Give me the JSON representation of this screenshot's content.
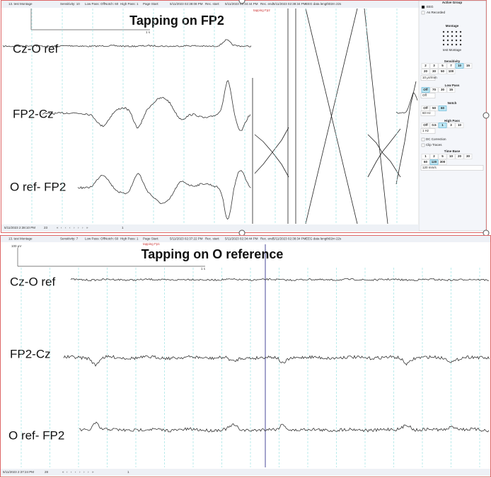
{
  "top_panel": {
    "toolbar": [
      "13. test Montage",
      "Sensitivity: 10",
      "Low Pass: Off",
      "Notch: 60",
      "High Pass: 1",
      "Page Start:",
      "5/11/2023 02:38:08 PM",
      "Rec. start:",
      "5/11/2023 02:34:44 PM",
      "Rec. end:",
      "5/11/2023 02:38:34 PM",
      "EEG data length:",
      "02m 22s"
    ],
    "scale_label": "1 s",
    "event_label": "tapping Fp2",
    "title": "Tapping on FP2",
    "channels": [
      "Cz-O ref",
      "FP2-Cz",
      "O ref- FP2"
    ],
    "status": {
      "time": "5/11/2023 2:38:10 PM",
      "page": "23",
      "page_of": "1"
    },
    "sidebar": {
      "active_group": "Active Group",
      "group": "EEG",
      "as_recorded": "As Recorded",
      "montage": "Montage",
      "montage_name": "test Montage",
      "sensitivity": "Sensitivity",
      "sensitivity_buttons": [
        "2",
        "3",
        "5",
        "7",
        "10",
        "15",
        "20",
        "30",
        "50",
        "100"
      ],
      "sensitivity_value": "10 µV/mm",
      "low_pass": "Low Pass",
      "low_pass_buttons": [
        "Off",
        "70",
        "30",
        "15"
      ],
      "low_pass_value": "Off",
      "notch": "Notch",
      "notch_buttons": [
        "Off",
        "50",
        "60"
      ],
      "notch_value": "60 Hz",
      "high_pass": "High Pass",
      "high_pass_buttons": [
        "Off",
        "0.5",
        "1",
        "3",
        "10"
      ],
      "high_pass_value": "1 Hz",
      "dc_correction": "DC Correction",
      "clip_traces": "Clip Traces",
      "time_base": "Time Base",
      "time_base_buttons": [
        "1",
        "2",
        "5",
        "10",
        "20",
        "30",
        "60",
        "120",
        "300"
      ],
      "time_base_value": "120 mm/s"
    }
  },
  "bottom_panel": {
    "toolbar": [
      "13. test Montage",
      "Sensitivity: 7",
      "Low Pass: Off",
      "Notch: 60",
      "High Pass: 1",
      "Page Start:",
      "5/11/2023 02:37:22 PM",
      "Rec. start:",
      "5/11/2023 02:34:44 PM",
      "Rec. end:",
      "5/11/2023 02:38:34 PM",
      "EEG data length:",
      "02m 22s"
    ],
    "amplitude_label": "100 µV",
    "scale_label": "1 s",
    "event_label": "tapping Fp1",
    "title": "Tapping on O reference",
    "channels": [
      "Cz-O ref",
      "FP2-Cz",
      "O ref- FP2"
    ],
    "status": {
      "time": "5/11/2023 2:37:24 PM",
      "page": "28",
      "page_of": "1"
    }
  }
}
